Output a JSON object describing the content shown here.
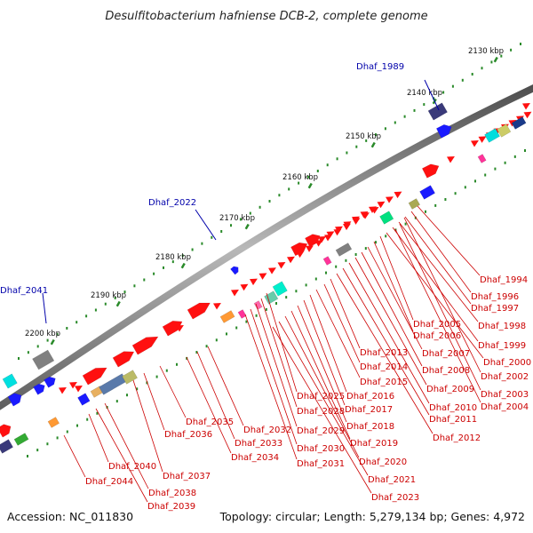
{
  "title": "Desulfitobacterium hafniense DCB-2, complete genome",
  "footer": {
    "accession": "Accession: NC_011830",
    "summary": "Topology: circular; Length: 5,279,134 bp; Genes: 4,972"
  },
  "colors": {
    "backbone": "#8a8a8a",
    "tick": "#2a8a2a",
    "red_label": "#cc0000",
    "blue_label": "#0000aa",
    "gene_red": "#ff1010",
    "gene_blue": "#1a1aff"
  },
  "kbp_ticks": [
    {
      "kbp": 2130,
      "label": "2130 kbp"
    },
    {
      "kbp": 2140,
      "label": "2140 kbp"
    },
    {
      "kbp": 2150,
      "label": "2150 kbp"
    },
    {
      "kbp": 2160,
      "label": "2160 kbp"
    },
    {
      "kbp": 2170,
      "label": "2170 kbp"
    },
    {
      "kbp": 2180,
      "label": "2180 kbp"
    },
    {
      "kbp": 2190,
      "label": "2190 kbp"
    },
    {
      "kbp": 2200,
      "label": "2200 kbp"
    }
  ],
  "outer_labels": [
    "Dhaf_1989",
    "Dhaf_2022",
    "Dhaf_2041"
  ],
  "inner_labels": [
    "Dhaf_1994",
    "Dhaf_1996",
    "Dhaf_1997",
    "Dhaf_1998",
    "Dhaf_1999",
    "Dhaf_2000",
    "Dhaf_2002",
    "Dhaf_2003",
    "Dhaf_2004",
    "Dhaf_2005",
    "Dhaf_2006",
    "Dhaf_2007",
    "Dhaf_2008",
    "Dhaf_2009",
    "Dhaf_2010",
    "Dhaf_2011",
    "Dhaf_2012",
    "Dhaf_2013",
    "Dhaf_2014",
    "Dhaf_2015",
    "Dhaf_2016",
    "Dhaf_2017",
    "Dhaf_2018",
    "Dhaf_2019",
    "Dhaf_2020",
    "Dhaf_2021",
    "Dhaf_2023",
    "Dhaf_2025",
    "Dhaf_2028",
    "Dhaf_2029",
    "Dhaf_2030",
    "Dhaf_2031",
    "Dhaf_2032",
    "Dhaf_2033",
    "Dhaf_2034",
    "Dhaf_2035",
    "Dhaf_2036",
    "Dhaf_2037",
    "Dhaf_2038",
    "Dhaf_2039",
    "Dhaf_2040",
    "Dhaf_2044"
  ]
}
